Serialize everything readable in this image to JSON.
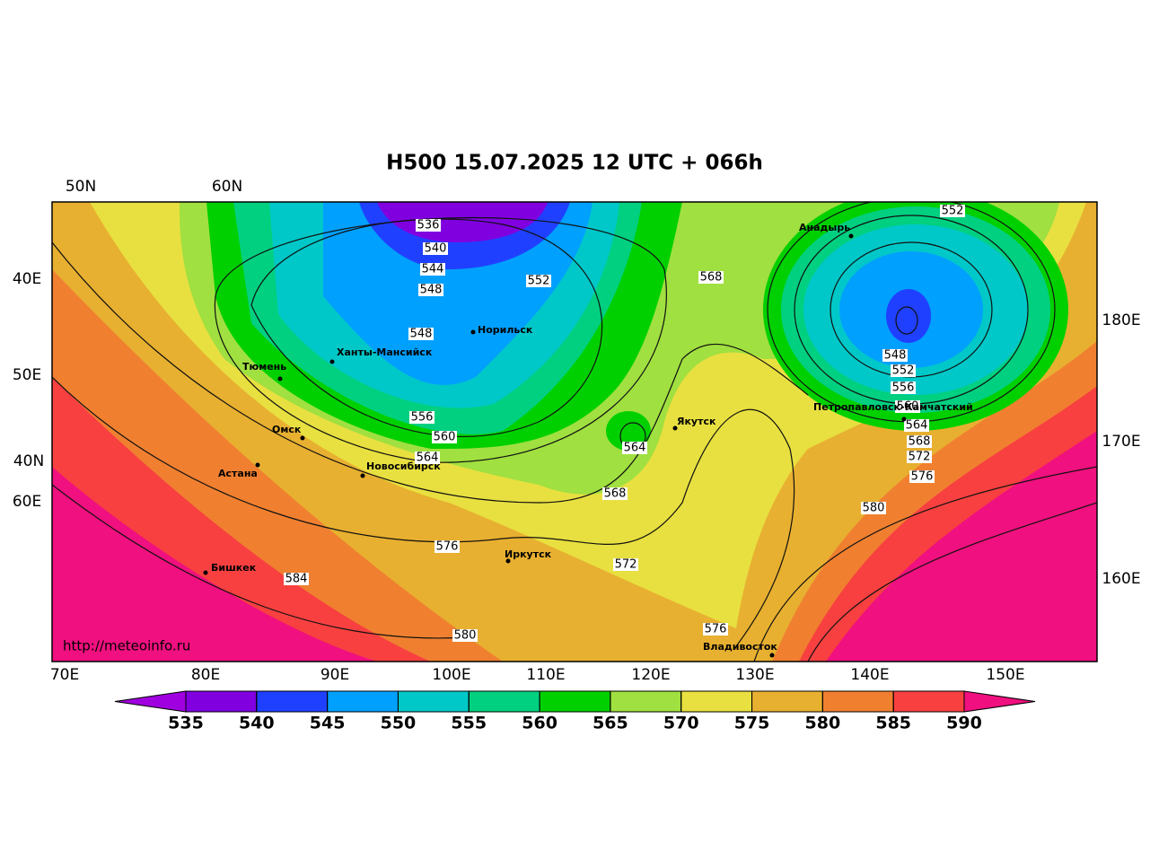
{
  "title": "H500  15.07.2025 12 UTC + 066h",
  "top_labels": [
    "50N",
    "60N"
  ],
  "left_labels": [
    "40E",
    "50E",
    "40N",
    "60E"
  ],
  "right_labels": [
    "180E",
    "170E",
    "160E"
  ],
  "bottom_labels": [
    "70E",
    "80E",
    "90E",
    "100E",
    "110E",
    "120E",
    "130E",
    "140E",
    "150E"
  ],
  "cities": [
    "Норильск",
    "Ханты-Мансийск",
    "Тюмень",
    "Омск",
    "Астана",
    "Новосибирск",
    "Иркутск",
    "Бишкек",
    "Якутск",
    "Анадырь",
    "Петропавловск-Камчатский",
    "Владивосток"
  ],
  "contour_labels": [
    "536",
    "540",
    "544",
    "548",
    "552",
    "548",
    "556",
    "560",
    "564",
    "568",
    "564",
    "568",
    "552",
    "548",
    "552",
    "556",
    "560",
    "564",
    "568",
    "572",
    "576",
    "580",
    "576",
    "572",
    "584",
    "580",
    "576"
  ],
  "watermark": "http://meteoinfo.ru",
  "colorbar": {
    "ticks": [
      535,
      540,
      545,
      550,
      555,
      560,
      565,
      570,
      575,
      580,
      585,
      590
    ],
    "colors": [
      "#a000e0",
      "#8000e0",
      "#2040ff",
      "#00a0ff",
      "#00c8c8",
      "#00d080",
      "#00d000",
      "#a0e040",
      "#e8e040",
      "#e8b030",
      "#f08030",
      "#f84040",
      "#f0107f"
    ]
  }
}
